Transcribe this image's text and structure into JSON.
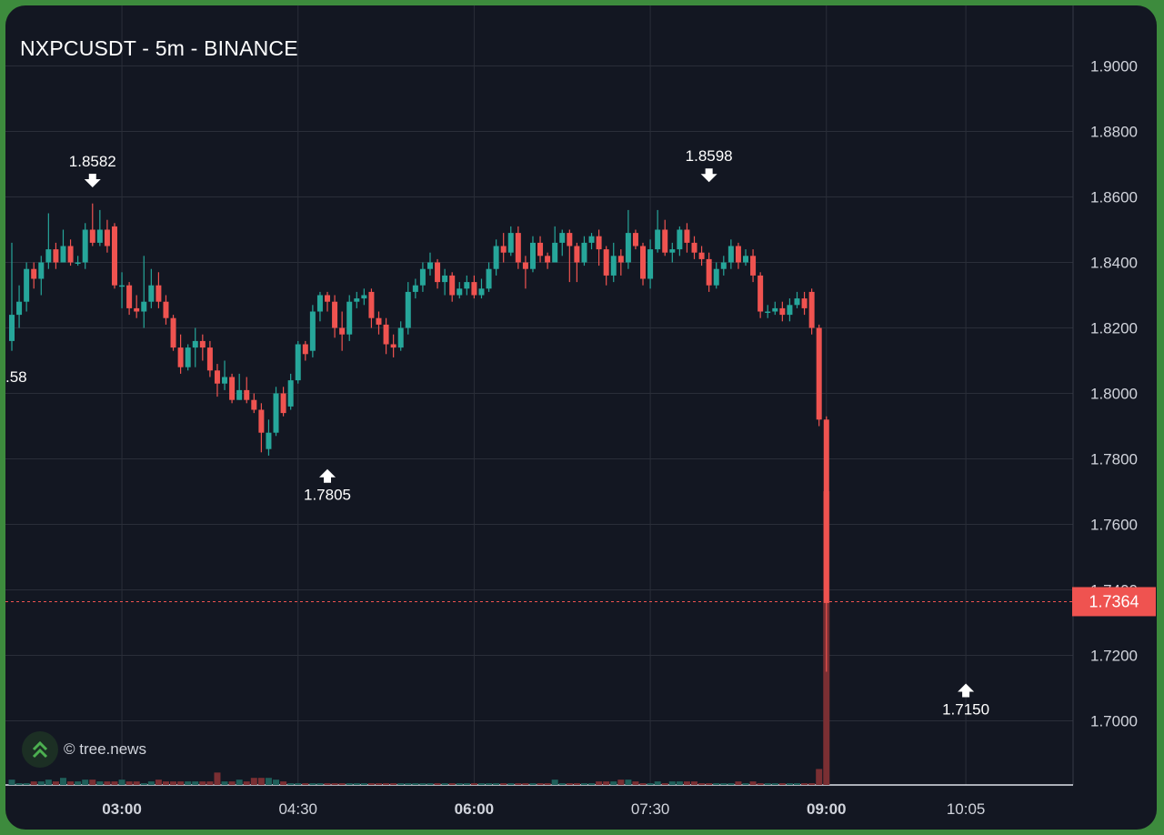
{
  "title": "NXPCUSDT - 5m - BINANCE",
  "watermark": "© tree.news",
  "colors": {
    "background": "#131722",
    "frame": "#3d8b3d",
    "up": "#26a69a",
    "down": "#ef5350",
    "grid": "#2a2e39",
    "axis_text": "#d1d4dc",
    "price_tag": "#ef5350"
  },
  "chart_data": {
    "type": "candlestick",
    "symbol": "NXPCUSDT",
    "interval": "5m",
    "exchange": "BINANCE",
    "last_price": 1.7364,
    "last_price_label": "1.7364",
    "ylim": [
      1.68,
      1.92
    ],
    "y_ticks": [
      "1.7000",
      "1.7200",
      "1.7400",
      "1.7600",
      "1.7800",
      "1.8000",
      "1.8200",
      "1.8400",
      "1.8600",
      "1.8800",
      "1.9000"
    ],
    "x_ticks": [
      {
        "label": "03:00",
        "bold": true
      },
      {
        "label": "04:30",
        "bold": false
      },
      {
        "label": "06:00",
        "bold": true
      },
      {
        "label": "07:30",
        "bold": false
      },
      {
        "label": "09:00",
        "bold": true
      },
      {
        "label": "10:05",
        "bold": false
      }
    ],
    "x_tick_bars": [
      15,
      39,
      63,
      87,
      111,
      130
    ],
    "grid": true,
    "annotations": [
      {
        "label": "1.8582",
        "bar": 11,
        "price": 1.8582,
        "type": "high"
      },
      {
        "label": "1.7805",
        "bar": 43,
        "price": 1.7805,
        "type": "low"
      },
      {
        "label": "1.8598",
        "bar": 95,
        "price": 1.8598,
        "type": "high"
      },
      {
        "label": "1.7150",
        "bar": 130,
        "price": 1.715,
        "type": "low"
      },
      {
        "label": ".58",
        "bar": 0,
        "price": 1.824,
        "type": "cut"
      }
    ],
    "candles": [
      [
        1.816,
        1.824,
        1.846,
        1.813,
        3
      ],
      [
        1.824,
        1.828,
        1.833,
        1.82,
        1
      ],
      [
        1.828,
        1.838,
        1.84,
        1.825,
        1
      ],
      [
        1.838,
        1.835,
        1.84,
        1.832,
        2
      ],
      [
        1.835,
        1.84,
        1.842,
        1.83,
        2
      ],
      [
        1.84,
        1.844,
        1.855,
        1.838,
        3
      ],
      [
        1.844,
        1.84,
        1.846,
        1.838,
        2
      ],
      [
        1.84,
        1.845,
        1.85,
        1.84,
        4
      ],
      [
        1.845,
        1.84,
        1.847,
        1.839,
        2
      ],
      [
        1.84,
        1.84,
        1.842,
        1.839,
        2
      ],
      [
        1.84,
        1.85,
        1.852,
        1.838,
        3
      ],
      [
        1.85,
        1.846,
        1.858,
        1.845,
        3
      ],
      [
        1.846,
        1.85,
        1.856,
        1.845,
        2
      ],
      [
        1.85,
        1.845,
        1.853,
        1.843,
        2
      ],
      [
        1.851,
        1.833,
        1.852,
        1.832,
        2
      ],
      [
        1.833,
        1.833,
        1.837,
        1.826,
        3
      ],
      [
        1.833,
        1.826,
        1.834,
        1.824,
        2
      ],
      [
        1.826,
        1.825,
        1.83,
        1.823,
        2
      ],
      [
        1.825,
        1.828,
        1.842,
        1.82,
        1
      ],
      [
        1.828,
        1.833,
        1.838,
        1.826,
        2
      ],
      [
        1.833,
        1.828,
        1.837,
        1.826,
        3
      ],
      [
        1.828,
        1.823,
        1.83,
        1.821,
        2
      ],
      [
        1.823,
        1.814,
        1.824,
        1.813,
        2
      ],
      [
        1.814,
        1.808,
        1.818,
        1.806,
        2
      ],
      [
        1.808,
        1.814,
        1.815,
        1.807,
        2
      ],
      [
        1.814,
        1.816,
        1.82,
        1.808,
        2
      ],
      [
        1.816,
        1.814,
        1.818,
        1.81,
        2
      ],
      [
        1.814,
        1.807,
        1.816,
        1.805,
        2
      ],
      [
        1.807,
        1.803,
        1.809,
        1.799,
        7
      ],
      [
        1.803,
        1.805,
        1.81,
        1.801,
        2
      ],
      [
        1.805,
        1.798,
        1.806,
        1.797,
        2
      ],
      [
        1.798,
        1.801,
        1.806,
        1.798,
        3
      ],
      [
        1.801,
        1.798,
        1.805,
        1.797,
        2
      ],
      [
        1.798,
        1.795,
        1.8,
        1.794,
        4
      ],
      [
        1.795,
        1.788,
        1.797,
        1.782,
        4
      ],
      [
        1.783,
        1.788,
        1.792,
        1.781,
        4
      ],
      [
        1.788,
        1.8,
        1.802,
        1.787,
        3
      ],
      [
        1.8,
        1.794,
        1.802,
        1.793,
        2
      ],
      [
        1.796,
        1.804,
        1.806,
        1.795,
        1
      ],
      [
        1.804,
        1.815,
        1.816,
        1.803,
        1
      ],
      [
        1.815,
        1.812,
        1.816,
        1.81,
        1
      ],
      [
        1.813,
        1.825,
        1.827,
        1.811,
        1
      ],
      [
        1.825,
        1.83,
        1.831,
        1.822,
        1
      ],
      [
        1.83,
        1.828,
        1.831,
        1.825,
        1
      ],
      [
        1.828,
        1.82,
        1.83,
        1.817,
        1
      ],
      [
        1.82,
        1.818,
        1.825,
        1.813,
        1
      ],
      [
        1.818,
        1.828,
        1.83,
        1.816,
        1
      ],
      [
        1.828,
        1.829,
        1.831,
        1.826,
        1
      ],
      [
        1.829,
        1.83,
        1.832,
        1.827,
        1
      ],
      [
        1.831,
        1.823,
        1.832,
        1.82,
        1
      ],
      [
        1.823,
        1.821,
        1.825,
        1.818,
        1
      ],
      [
        1.821,
        1.815,
        1.823,
        1.812,
        1
      ],
      [
        1.815,
        1.814,
        1.818,
        1.811,
        1
      ],
      [
        1.814,
        1.82,
        1.822,
        1.813,
        1
      ],
      [
        1.82,
        1.831,
        1.834,
        1.818,
        1
      ],
      [
        1.831,
        1.833,
        1.835,
        1.829,
        1
      ],
      [
        1.833,
        1.838,
        1.84,
        1.831,
        1
      ],
      [
        1.838,
        1.84,
        1.843,
        1.836,
        1
      ],
      [
        1.84,
        1.834,
        1.841,
        1.832,
        1
      ],
      [
        1.834,
        1.836,
        1.838,
        1.83,
        1
      ],
      [
        1.836,
        1.83,
        1.837,
        1.828,
        1
      ],
      [
        1.83,
        1.832,
        1.834,
        1.829,
        1
      ],
      [
        1.832,
        1.834,
        1.836,
        1.83,
        1
      ],
      [
        1.834,
        1.83,
        1.836,
        1.829,
        1
      ],
      [
        1.83,
        1.832,
        1.835,
        1.829,
        1
      ],
      [
        1.832,
        1.838,
        1.84,
        1.831,
        1
      ],
      [
        1.838,
        1.845,
        1.847,
        1.836,
        1
      ],
      [
        1.845,
        1.843,
        1.849,
        1.84,
        1
      ],
      [
        1.843,
        1.849,
        1.851,
        1.842,
        1
      ],
      [
        1.849,
        1.84,
        1.851,
        1.838,
        1
      ],
      [
        1.84,
        1.838,
        1.842,
        1.832,
        1
      ],
      [
        1.838,
        1.846,
        1.848,
        1.837,
        1
      ],
      [
        1.846,
        1.842,
        1.848,
        1.84,
        1
      ],
      [
        1.842,
        1.84,
        1.843,
        1.838,
        1
      ],
      [
        1.84,
        1.846,
        1.851,
        1.84,
        3
      ],
      [
        1.846,
        1.849,
        1.85,
        1.842,
        1
      ],
      [
        1.849,
        1.845,
        1.85,
        1.834,
        1
      ],
      [
        1.845,
        1.84,
        1.846,
        1.834,
        1
      ],
      [
        1.84,
        1.846,
        1.848,
        1.839,
        1
      ],
      [
        1.846,
        1.848,
        1.849,
        1.844,
        1
      ],
      [
        1.848,
        1.844,
        1.85,
        1.839,
        2
      ],
      [
        1.844,
        1.836,
        1.845,
        1.833,
        2
      ],
      [
        1.836,
        1.842,
        1.846,
        1.834,
        2
      ],
      [
        1.842,
        1.84,
        1.844,
        1.836,
        3
      ],
      [
        1.84,
        1.849,
        1.856,
        1.838,
        3
      ],
      [
        1.849,
        1.845,
        1.85,
        1.844,
        2
      ],
      [
        1.845,
        1.835,
        1.846,
        1.833,
        1
      ],
      [
        1.835,
        1.844,
        1.847,
        1.832,
        1
      ],
      [
        1.844,
        1.85,
        1.856,
        1.843,
        2
      ],
      [
        1.85,
        1.843,
        1.853,
        1.842,
        1
      ],
      [
        1.843,
        1.844,
        1.846,
        1.84,
        2
      ],
      [
        1.844,
        1.85,
        1.851,
        1.842,
        2
      ],
      [
        1.85,
        1.846,
        1.852,
        1.843,
        2
      ],
      [
        1.846,
        1.843,
        1.848,
        1.841,
        2
      ],
      [
        1.843,
        1.841,
        1.845,
        1.839,
        1
      ],
      [
        1.841,
        1.833,
        1.843,
        1.831,
        1
      ],
      [
        1.833,
        1.838,
        1.84,
        1.832,
        1
      ],
      [
        1.838,
        1.84,
        1.842,
        1.836,
        1
      ],
      [
        1.84,
        1.845,
        1.847,
        1.838,
        1
      ],
      [
        1.845,
        1.84,
        1.846,
        1.838,
        2
      ],
      [
        1.84,
        1.842,
        1.844,
        1.839,
        1
      ],
      [
        1.842,
        1.836,
        1.844,
        1.834,
        2
      ],
      [
        1.836,
        1.825,
        1.837,
        1.823,
        1
      ],
      [
        1.825,
        1.825,
        1.827,
        1.823,
        1
      ],
      [
        1.825,
        1.826,
        1.828,
        1.824,
        1
      ],
      [
        1.826,
        1.824,
        1.828,
        1.822,
        1
      ],
      [
        1.824,
        1.827,
        1.829,
        1.822,
        1
      ],
      [
        1.827,
        1.829,
        1.831,
        1.826,
        1
      ],
      [
        1.829,
        1.826,
        1.831,
        1.824,
        1
      ],
      [
        1.831,
        1.82,
        1.832,
        1.818,
        1
      ],
      [
        1.82,
        1.792,
        1.821,
        1.79,
        9
      ],
      [
        1.792,
        1.736,
        1.793,
        1.715,
        36
      ]
    ]
  }
}
